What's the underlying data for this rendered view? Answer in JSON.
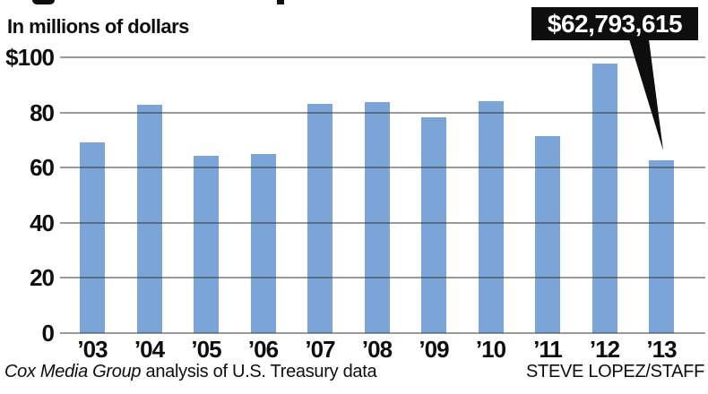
{
  "subtitle": "In millions of dollars",
  "callout": {
    "label": "$62,793,615"
  },
  "footer": {
    "source_italic": "Cox Media Group",
    "source_rest": " analysis of U.S. Treasury data",
    "credit": "STEVE LOPEZ/STAFF"
  },
  "colors": {
    "bar": "#7BA4D8",
    "grid": "rgba(60,60,60,0.52)",
    "callout_bg": "#0e0e0e",
    "callout_text": "#ffffff",
    "text": "#0e0e0e"
  },
  "chart_data": {
    "type": "bar",
    "title": "",
    "unit_label": "In millions of dollars",
    "categories": [
      "’03",
      "’04",
      "’05",
      "’06",
      "’07",
      "’08",
      "’09",
      "’10",
      "’11",
      "’12",
      "’13"
    ],
    "values": [
      69.0,
      82.8,
      64.2,
      64.9,
      83.2,
      83.8,
      78.3,
      84.0,
      71.3,
      97.8,
      62.8
    ],
    "ylim": [
      0,
      100
    ],
    "yticks": [
      0,
      20,
      40,
      60,
      80,
      100
    ],
    "ytick_labels": [
      "0",
      "20",
      "40",
      "60",
      "80",
      "$100"
    ],
    "grid": true,
    "legend": "none",
    "annotation": {
      "text": "$62,793,615",
      "target_category": "’13"
    }
  }
}
